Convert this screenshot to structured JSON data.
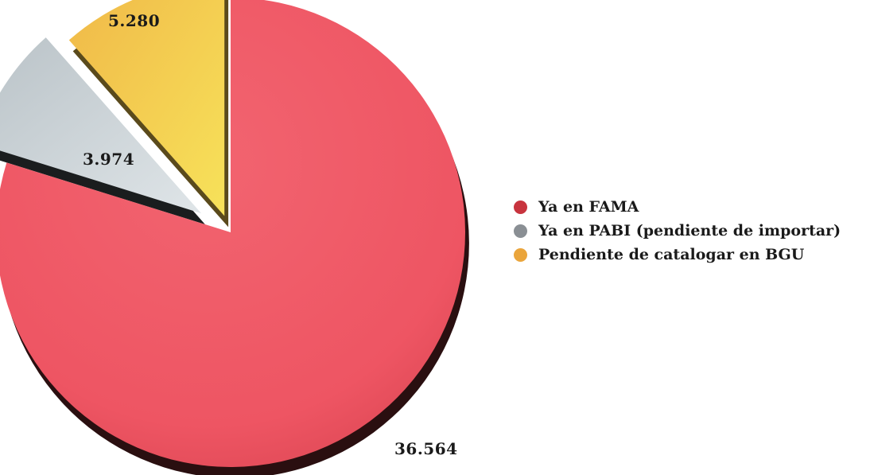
{
  "chart_data": {
    "type": "pie",
    "style": "3d-exploded",
    "categories": [
      "Ya en FAMA",
      "Ya en PABI (pendiente de importar)",
      "Pendiente de catalogar en BGU"
    ],
    "values": [
      36564,
      3974,
      5280
    ],
    "value_labels": [
      "36.564",
      "3.974",
      "5.280"
    ],
    "colors": [
      "#ee5563",
      "#c7cfd3",
      "#f3c94c"
    ],
    "legend_colors": [
      "#c8343e",
      "#8a8f94",
      "#eaa53c"
    ],
    "legend_position": "right"
  }
}
